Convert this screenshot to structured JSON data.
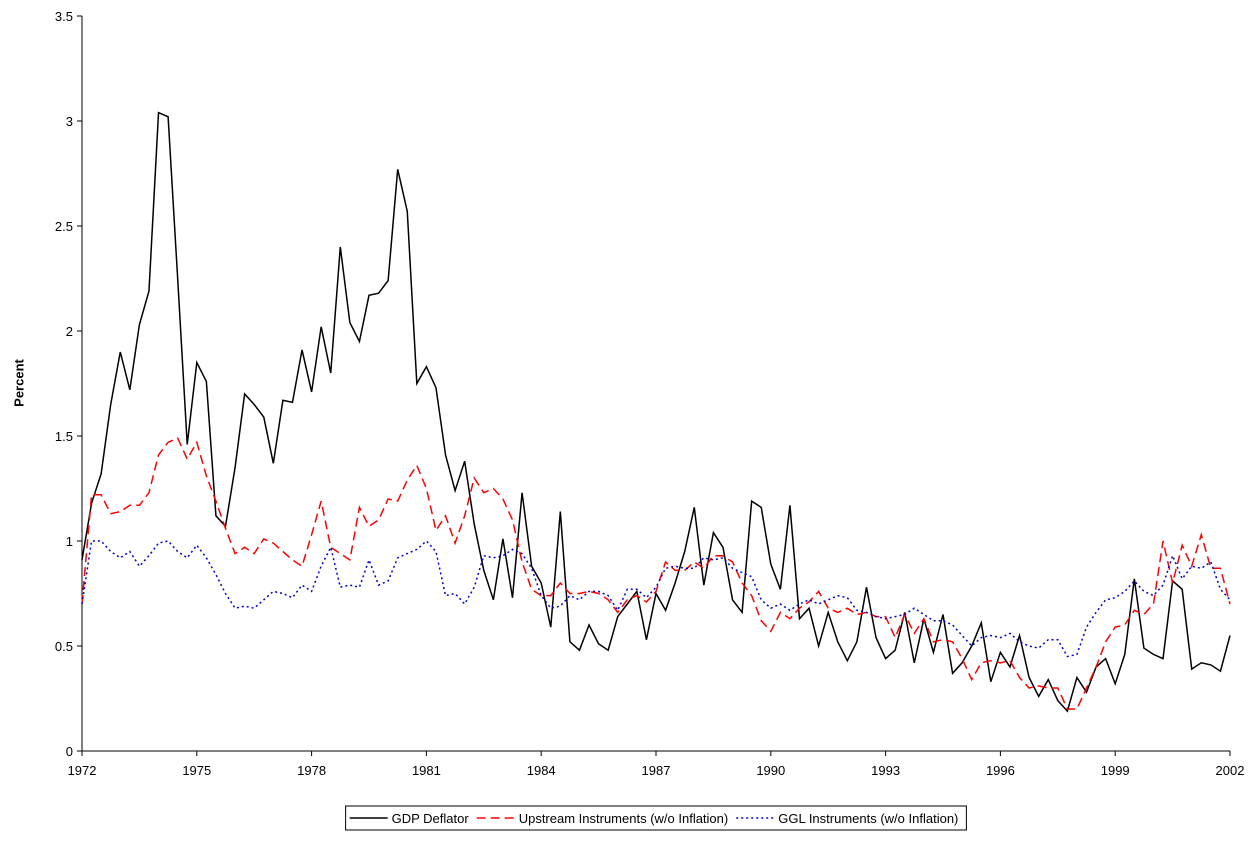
{
  "chart_data": {
    "type": "line",
    "y_label": "Percent",
    "x": [
      1972,
      1972.25,
      1972.5,
      1972.75,
      1973,
      1973.25,
      1973.5,
      1973.75,
      1974,
      1974.25,
      1974.5,
      1974.75,
      1975,
      1975.25,
      1975.5,
      1975.75,
      1976,
      1976.25,
      1976.5,
      1976.75,
      1977,
      1977.25,
      1977.5,
      1977.75,
      1978,
      1978.25,
      1978.5,
      1978.75,
      1979,
      1979.25,
      1979.5,
      1979.75,
      1980,
      1980.25,
      1980.5,
      1980.75,
      1981,
      1981.25,
      1981.5,
      1981.75,
      1982,
      1982.25,
      1982.5,
      1982.75,
      1983,
      1983.25,
      1983.5,
      1983.75,
      1984,
      1984.25,
      1984.5,
      1984.75,
      1985,
      1985.25,
      1985.5,
      1985.75,
      1986,
      1986.25,
      1986.5,
      1986.75,
      1987,
      1987.25,
      1987.5,
      1987.75,
      1988,
      1988.25,
      1988.5,
      1988.75,
      1989,
      1989.25,
      1989.5,
      1989.75,
      1990,
      1990.25,
      1990.5,
      1990.75,
      1991,
      1991.25,
      1991.5,
      1991.75,
      1992,
      1992.25,
      1992.5,
      1992.75,
      1993,
      1993.25,
      1993.5,
      1993.75,
      1994,
      1994.25,
      1994.5,
      1994.75,
      1995,
      1995.25,
      1995.5,
      1995.75,
      1996,
      1996.25,
      1996.5,
      1996.75,
      1997,
      1997.25,
      1997.5,
      1997.75,
      1998,
      1998.25,
      1998.5,
      1998.75,
      1999,
      1999.25,
      1999.5,
      1999.75,
      2000,
      2000.25,
      2000.5,
      2000.75,
      2001,
      2001.25,
      2001.5,
      2001.75,
      2002
    ],
    "series": [
      {
        "name": "GDP Deflator",
        "color": "#000000",
        "dash": "solid",
        "values": [
          0.91,
          1.18,
          1.32,
          1.65,
          1.9,
          1.72,
          2.03,
          2.19,
          3.04,
          3.02,
          2.25,
          1.46,
          1.85,
          1.76,
          1.12,
          1.07,
          1.35,
          1.7,
          1.65,
          1.59,
          1.37,
          1.67,
          1.66,
          1.91,
          1.71,
          2.02,
          1.8,
          2.4,
          2.04,
          1.95,
          2.17,
          2.18,
          2.24,
          2.77,
          2.57,
          1.75,
          1.83,
          1.73,
          1.41,
          1.24,
          1.38,
          1.08,
          0.86,
          0.72,
          1.01,
          0.73,
          1.23,
          0.88,
          0.8,
          0.59,
          1.14,
          0.52,
          0.48,
          0.6,
          0.51,
          0.48,
          0.64,
          0.7,
          0.76,
          0.53,
          0.75,
          0.67,
          0.8,
          0.95,
          1.16,
          0.79,
          1.04,
          0.97,
          0.72,
          0.66,
          1.19,
          1.16,
          0.89,
          0.77,
          1.17,
          0.63,
          0.68,
          0.5,
          0.66,
          0.52,
          0.43,
          0.52,
          0.78,
          0.54,
          0.44,
          0.48,
          0.66,
          0.42,
          0.63,
          0.47,
          0.65,
          0.37,
          0.42,
          0.5,
          0.61,
          0.33,
          0.47,
          0.4,
          0.55,
          0.35,
          0.26,
          0.34,
          0.24,
          0.19,
          0.35,
          0.28,
          0.4,
          0.44,
          0.32,
          0.46,
          0.82,
          0.49,
          0.46,
          0.44,
          0.81,
          0.77,
          0.39,
          0.42,
          0.41,
          0.38,
          0.55
        ]
      },
      {
        "name": "Upstream Instruments (w/o Inflation)",
        "color": "#ff0000",
        "dash": "dashed",
        "values": [
          0.7,
          1.22,
          1.22,
          1.13,
          1.14,
          1.17,
          1.17,
          1.23,
          1.41,
          1.47,
          1.49,
          1.39,
          1.47,
          1.31,
          1.19,
          1.06,
          0.94,
          0.97,
          0.94,
          1.01,
          0.99,
          0.95,
          0.91,
          0.88,
          1.03,
          1.19,
          0.97,
          0.94,
          0.91,
          1.16,
          1.07,
          1.1,
          1.2,
          1.19,
          1.29,
          1.36,
          1.25,
          1.05,
          1.12,
          0.99,
          1.12,
          1.3,
          1.23,
          1.25,
          1.2,
          1.1,
          0.9,
          0.77,
          0.74,
          0.74,
          0.8,
          0.75,
          0.75,
          0.76,
          0.75,
          0.72,
          0.66,
          0.72,
          0.74,
          0.71,
          0.76,
          0.9,
          0.86,
          0.86,
          0.9,
          0.87,
          0.93,
          0.93,
          0.9,
          0.8,
          0.74,
          0.62,
          0.57,
          0.66,
          0.63,
          0.68,
          0.71,
          0.76,
          0.68,
          0.66,
          0.68,
          0.65,
          0.66,
          0.64,
          0.64,
          0.54,
          0.65,
          0.56,
          0.63,
          0.52,
          0.53,
          0.52,
          0.44,
          0.34,
          0.42,
          0.43,
          0.42,
          0.43,
          0.35,
          0.3,
          0.31,
          0.3,
          0.3,
          0.2,
          0.2,
          0.3,
          0.4,
          0.52,
          0.59,
          0.6,
          0.67,
          0.65,
          0.7,
          1.0,
          0.8,
          0.98,
          0.88,
          1.03,
          0.87,
          0.87,
          0.7
        ]
      },
      {
        "name": "GGL Instruments (w/o Inflation)",
        "color": "#0000cc",
        "dash": "dotted",
        "values": [
          0.7,
          1.0,
          1.0,
          0.95,
          0.92,
          0.95,
          0.88,
          0.93,
          0.99,
          1.0,
          0.95,
          0.92,
          0.98,
          0.92,
          0.84,
          0.75,
          0.68,
          0.69,
          0.68,
          0.72,
          0.76,
          0.75,
          0.73,
          0.79,
          0.76,
          0.88,
          0.97,
          0.78,
          0.79,
          0.78,
          0.91,
          0.79,
          0.81,
          0.92,
          0.94,
          0.96,
          1.0,
          0.95,
          0.74,
          0.75,
          0.7,
          0.78,
          0.93,
          0.92,
          0.93,
          0.96,
          0.94,
          0.87,
          0.74,
          0.68,
          0.69,
          0.74,
          0.72,
          0.76,
          0.76,
          0.74,
          0.67,
          0.77,
          0.77,
          0.73,
          0.78,
          0.87,
          0.88,
          0.87,
          0.87,
          0.92,
          0.91,
          0.92,
          0.87,
          0.85,
          0.83,
          0.72,
          0.68,
          0.7,
          0.67,
          0.7,
          0.72,
          0.7,
          0.72,
          0.74,
          0.73,
          0.67,
          0.66,
          0.64,
          0.63,
          0.64,
          0.65,
          0.68,
          0.65,
          0.62,
          0.62,
          0.6,
          0.55,
          0.5,
          0.54,
          0.55,
          0.54,
          0.56,
          0.52,
          0.5,
          0.49,
          0.53,
          0.53,
          0.45,
          0.46,
          0.59,
          0.66,
          0.72,
          0.73,
          0.76,
          0.81,
          0.76,
          0.74,
          0.79,
          0.93,
          0.82,
          0.88,
          0.87,
          0.9,
          0.77,
          0.72
        ]
      }
    ],
    "xlim": [
      1972,
      2002
    ],
    "xticks": [
      1972,
      1975,
      1978,
      1981,
      1984,
      1987,
      1990,
      1993,
      1996,
      1999,
      2002
    ],
    "ylim": [
      0,
      3.5
    ],
    "yticks": [
      0,
      0.5,
      1,
      1.5,
      2,
      2.5,
      3,
      3.5
    ],
    "grid": false,
    "legend": "bottom"
  }
}
